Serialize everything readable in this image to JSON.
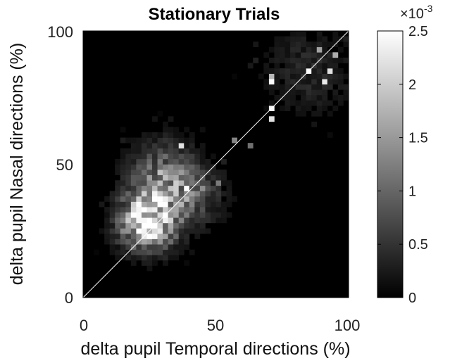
{
  "chart_data": {
    "type": "heatmap",
    "title": "Stationary Trials",
    "xlabel": "delta pupil Temporal directions (%)",
    "ylabel": "delta pupil Nasal directions (%)",
    "xlim": [
      0,
      100
    ],
    "ylim": [
      0,
      100
    ],
    "x_ticks": [
      "0",
      "50",
      "100"
    ],
    "y_ticks": [
      "0",
      "50",
      "100"
    ],
    "grid": false,
    "colormap": "gray",
    "background_color": "#000000",
    "diagonal_reference_line": {
      "from": [
        0,
        0
      ],
      "to": [
        100,
        100
      ],
      "color": "#ffffff"
    },
    "colorbar": {
      "range": [
        0,
        0.0025
      ],
      "ticks": [
        "0",
        "0.5",
        "1",
        "1.5",
        "2",
        "2.5"
      ],
      "tick_values": [
        0,
        0.0005,
        0.001,
        0.0015,
        0.002,
        0.0025
      ],
      "exponent_base": "×10",
      "exponent_power": "-3"
    },
    "bin_count": 50,
    "density_clusters": [
      {
        "center_x": 24,
        "center_y": 28,
        "spread_x": 7,
        "spread_y": 7,
        "peak": 0.0025
      },
      {
        "center_x": 30,
        "center_y": 44,
        "spread_x": 9,
        "spread_y": 10,
        "peak": 0.0011
      },
      {
        "center_x": 40,
        "center_y": 38,
        "spread_x": 9,
        "spread_y": 8,
        "peak": 0.0007
      },
      {
        "center_x": 85,
        "center_y": 85,
        "spread_x": 12,
        "spread_y": 12,
        "peak": 0.0004
      }
    ],
    "bright_cells": [
      {
        "x": 70,
        "y": 66,
        "v": 0.0022
      },
      {
        "x": 71,
        "y": 70,
        "v": 0.0024
      },
      {
        "x": 71,
        "y": 80,
        "v": 0.0025
      },
      {
        "x": 70,
        "y": 82,
        "v": 0.0018
      },
      {
        "x": 84,
        "y": 84,
        "v": 0.0025
      },
      {
        "x": 90,
        "y": 81,
        "v": 0.0023
      },
      {
        "x": 92,
        "y": 84,
        "v": 0.0022
      },
      {
        "x": 89,
        "y": 92,
        "v": 0.0016
      },
      {
        "x": 94,
        "y": 90,
        "v": 0.0017
      },
      {
        "x": 37,
        "y": 57,
        "v": 0.0022
      },
      {
        "x": 38,
        "y": 41,
        "v": 0.0025
      },
      {
        "x": 29,
        "y": 46,
        "v": 0.0019
      },
      {
        "x": 57,
        "y": 58,
        "v": 0.0013
      },
      {
        "x": 62,
        "y": 56,
        "v": 0.0011
      },
      {
        "x": 45,
        "y": 40,
        "v": 0.0014
      },
      {
        "x": 50,
        "y": 42,
        "v": 0.0012
      }
    ]
  }
}
